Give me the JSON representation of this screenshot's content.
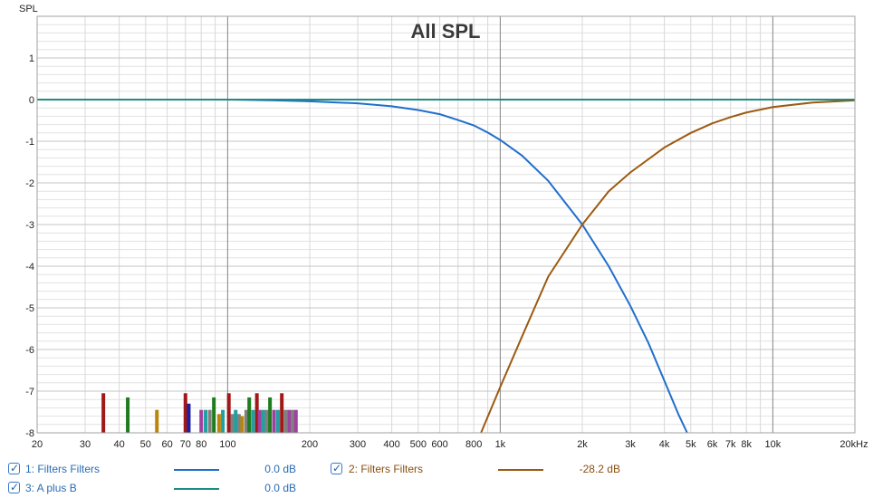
{
  "chart_data": {
    "type": "line",
    "title": "All SPL",
    "ylabel": "SPL",
    "xlabel": "",
    "x_scale": "log",
    "xlim": [
      20,
      20000
    ],
    "ylim": [
      -8,
      2
    ],
    "x_ticks": [
      {
        "v": 20,
        "label": "20"
      },
      {
        "v": 30,
        "label": "30"
      },
      {
        "v": 40,
        "label": "40"
      },
      {
        "v": 50,
        "label": "50"
      },
      {
        "v": 60,
        "label": "60"
      },
      {
        "v": 70,
        "label": "70"
      },
      {
        "v": 80,
        "label": "80"
      },
      {
        "v": 100,
        "label": "100"
      },
      {
        "v": 200,
        "label": "200"
      },
      {
        "v": 300,
        "label": "300"
      },
      {
        "v": 400,
        "label": "400"
      },
      {
        "v": 500,
        "label": "500"
      },
      {
        "v": 600,
        "label": "600"
      },
      {
        "v": 800,
        "label": "800"
      },
      {
        "v": 1000,
        "label": "1k"
      },
      {
        "v": 2000,
        "label": "2k"
      },
      {
        "v": 3000,
        "label": "3k"
      },
      {
        "v": 4000,
        "label": "4k"
      },
      {
        "v": 5000,
        "label": "5k"
      },
      {
        "v": 6000,
        "label": "6k"
      },
      {
        "v": 7000,
        "label": "7k"
      },
      {
        "v": 8000,
        "label": "8k"
      },
      {
        "v": 10000,
        "label": "10k"
      },
      {
        "v": 20000,
        "label": "20kHz"
      }
    ],
    "y_ticks": [
      1,
      0,
      -1,
      -2,
      -3,
      -4,
      -5,
      -6,
      -7,
      -8
    ],
    "grid": true,
    "series": [
      {
        "name": "1: Filters Filters",
        "color": "#1f6fcc",
        "points": [
          [
            20,
            0
          ],
          [
            100,
            0
          ],
          [
            150,
            -0.02
          ],
          [
            200,
            -0.04
          ],
          [
            300,
            -0.09
          ],
          [
            400,
            -0.16
          ],
          [
            500,
            -0.25
          ],
          [
            600,
            -0.35
          ],
          [
            700,
            -0.49
          ],
          [
            800,
            -0.62
          ],
          [
            900,
            -0.79
          ],
          [
            1000,
            -0.97
          ],
          [
            1200,
            -1.34
          ],
          [
            1500,
            -1.95
          ],
          [
            2000,
            -3.0
          ],
          [
            2500,
            -4.0
          ],
          [
            3000,
            -4.95
          ],
          [
            3500,
            -5.85
          ],
          [
            4000,
            -6.75
          ],
          [
            4500,
            -7.55
          ],
          [
            4850,
            -8.0
          ]
        ]
      },
      {
        "name": "2: Filters Filters",
        "color": "#9c5a10",
        "points": [
          [
            850,
            -8.0
          ],
          [
            1000,
            -6.9
          ],
          [
            1200,
            -5.7
          ],
          [
            1500,
            -4.25
          ],
          [
            2000,
            -3.0
          ],
          [
            2500,
            -2.2
          ],
          [
            3000,
            -1.75
          ],
          [
            4000,
            -1.15
          ],
          [
            5000,
            -0.8
          ],
          [
            6000,
            -0.57
          ],
          [
            7000,
            -0.42
          ],
          [
            8000,
            -0.31
          ],
          [
            10000,
            -0.18
          ],
          [
            14000,
            -0.07
          ],
          [
            20000,
            -0.02
          ]
        ]
      },
      {
        "name": "3: A plus B",
        "color": "#1d8c82",
        "points": [
          [
            20,
            0
          ],
          [
            20000,
            0
          ]
        ]
      }
    ],
    "markers": [
      {
        "f": 35,
        "top": -7.05,
        "color": "#a01818"
      },
      {
        "f": 43,
        "top": -7.15,
        "color": "#1e7b1e"
      },
      {
        "f": 55,
        "top": -7.45,
        "color": "#b8860b"
      },
      {
        "f": 70,
        "top": -7.05,
        "color": "#a01818"
      },
      {
        "f": 72,
        "top": -7.3,
        "color": "#2020a0"
      },
      {
        "f": 80,
        "top": -7.45,
        "color": "#a040a0"
      },
      {
        "f": 83,
        "top": -7.45,
        "color": "#20a0a0"
      },
      {
        "f": 86,
        "top": -7.45,
        "color": "#808080"
      },
      {
        "f": 89,
        "top": -7.15,
        "color": "#1e7b1e"
      },
      {
        "f": 93,
        "top": -7.55,
        "color": "#b8860b"
      },
      {
        "f": 96,
        "top": -7.45,
        "color": "#20a0a0"
      },
      {
        "f": 101,
        "top": -7.05,
        "color": "#a01818"
      },
      {
        "f": 104,
        "top": -7.55,
        "color": "#808080"
      },
      {
        "f": 107,
        "top": -7.45,
        "color": "#20a0a0"
      },
      {
        "f": 110,
        "top": -7.55,
        "color": "#808080"
      },
      {
        "f": 113,
        "top": -7.6,
        "color": "#b8860b"
      },
      {
        "f": 117,
        "top": -7.45,
        "color": "#808080"
      },
      {
        "f": 120,
        "top": -7.15,
        "color": "#1e7b1e"
      },
      {
        "f": 124,
        "top": -7.45,
        "color": "#20a0a0"
      },
      {
        "f": 128,
        "top": -7.05,
        "color": "#a01818"
      },
      {
        "f": 131,
        "top": -7.45,
        "color": "#a040a0"
      },
      {
        "f": 135,
        "top": -7.45,
        "color": "#20a0a0"
      },
      {
        "f": 139,
        "top": -7.45,
        "color": "#808080"
      },
      {
        "f": 143,
        "top": -7.15,
        "color": "#1e7b1e"
      },
      {
        "f": 148,
        "top": -7.45,
        "color": "#a040a0"
      },
      {
        "f": 153,
        "top": -7.45,
        "color": "#20a0a0"
      },
      {
        "f": 158,
        "top": -7.05,
        "color": "#a01818"
      },
      {
        "f": 163,
        "top": -7.45,
        "color": "#808080"
      },
      {
        "f": 168,
        "top": -7.45,
        "color": "#a040a0"
      },
      {
        "f": 173,
        "top": -7.45,
        "color": "#808080"
      },
      {
        "f": 178,
        "top": -7.45,
        "color": "#a040a0"
      }
    ]
  },
  "legend": {
    "items": [
      {
        "label": "1: Filters Filters",
        "value": "0.0 dB",
        "color": "#1f6fcc",
        "checked": true
      },
      {
        "label": "2: Filters Filters",
        "value": "-28.2 dB",
        "color": "#9c5a10",
        "checked": true
      },
      {
        "label": "3: A plus B",
        "value": "0.0 dB",
        "color": "#1d8c82",
        "checked": true
      }
    ]
  }
}
